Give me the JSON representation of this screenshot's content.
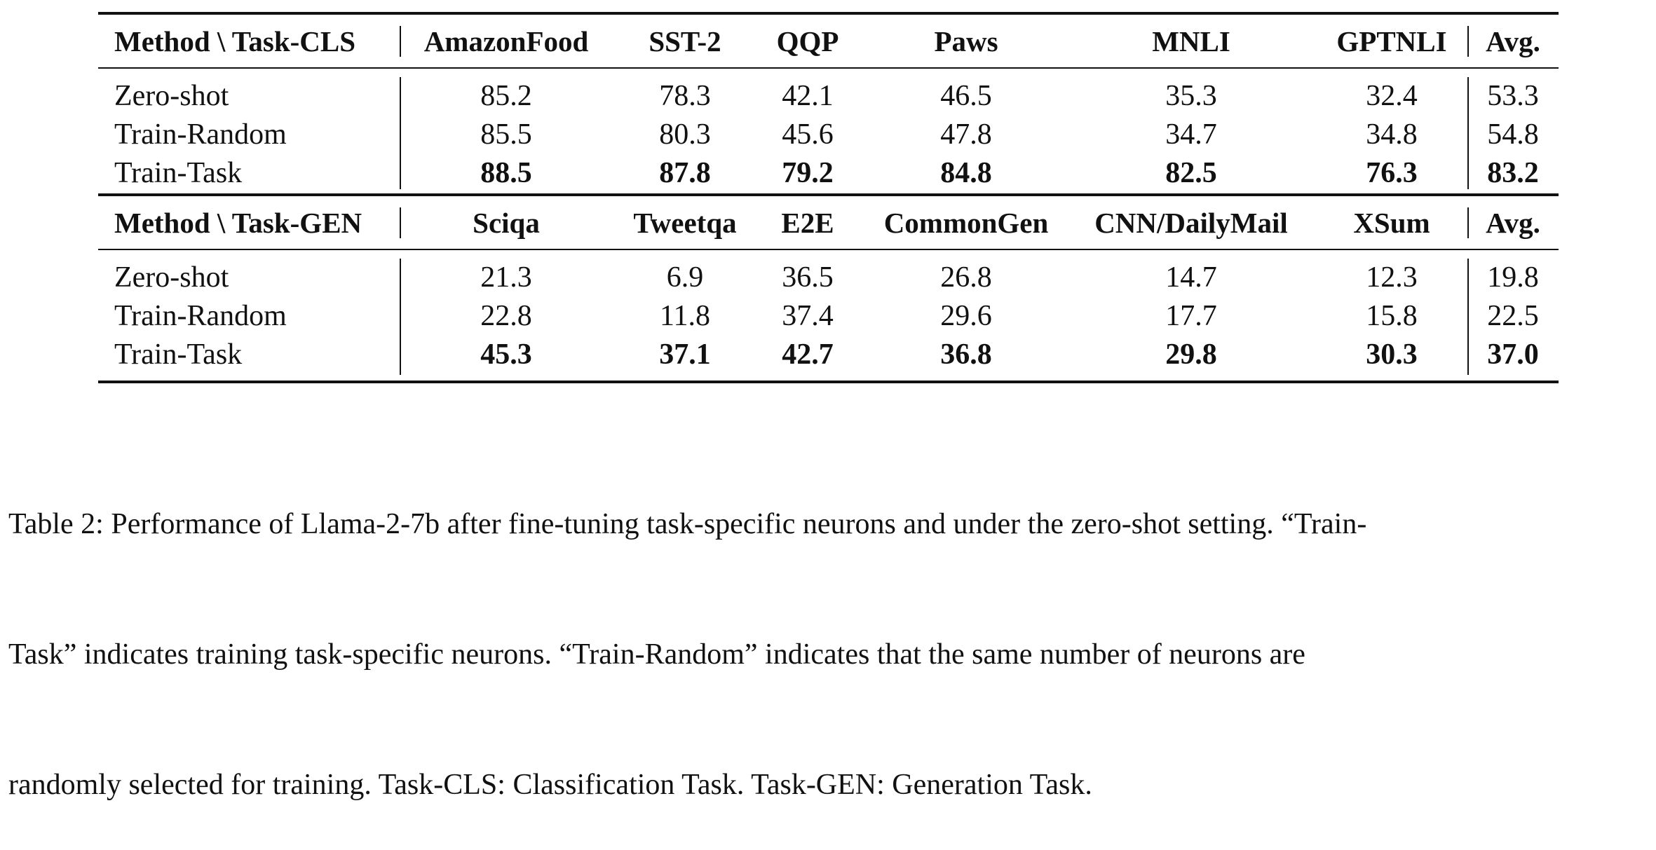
{
  "table": {
    "cls": {
      "header": [
        "Method \\ Task-CLS",
        "AmazonFood",
        "SST-2",
        "QQP",
        "Paws",
        "MNLI",
        "GPTNLI",
        "Avg."
      ],
      "rows": [
        {
          "method": "Zero-shot",
          "values": [
            "85.2",
            "78.3",
            "42.1",
            "46.5",
            "35.3",
            "32.4",
            "53.3"
          ]
        },
        {
          "method": "Train-Random",
          "values": [
            "85.5",
            "80.3",
            "45.6",
            "47.8",
            "34.7",
            "34.8",
            "54.8"
          ]
        },
        {
          "method": "Train-Task",
          "values": [
            "88.5",
            "87.8",
            "79.2",
            "84.8",
            "82.5",
            "76.3",
            "83.2"
          ]
        }
      ]
    },
    "gen": {
      "header": [
        "Method \\ Task-GEN",
        "Sciqa",
        "Tweetqa",
        "E2E",
        "CommonGen",
        "CNN/DailyMail",
        "XSum",
        "Avg."
      ],
      "rows": [
        {
          "method": "Zero-shot",
          "values": [
            "21.3",
            "6.9",
            "36.5",
            "26.8",
            "14.7",
            "12.3",
            "19.8"
          ]
        },
        {
          "method": "Train-Random",
          "values": [
            "22.8",
            "11.8",
            "37.4",
            "29.6",
            "17.7",
            "15.8",
            "22.5"
          ]
        },
        {
          "method": "Train-Task",
          "values": [
            "45.3",
            "37.1",
            "42.7",
            "36.8",
            "29.8",
            "30.3",
            "37.0"
          ]
        }
      ]
    }
  },
  "caption": {
    "line1": "Table 2: Performance of Llama-2-7b after fine-tuning task-specific neurons and under the zero-shot setting. “Train-",
    "line2": "Task” indicates training task-specific neurons. “Train-Random” indicates that the same number of neurons are",
    "line3": "randomly selected for training. Task-CLS: Classification Task. Task-GEN: Generation Task."
  }
}
